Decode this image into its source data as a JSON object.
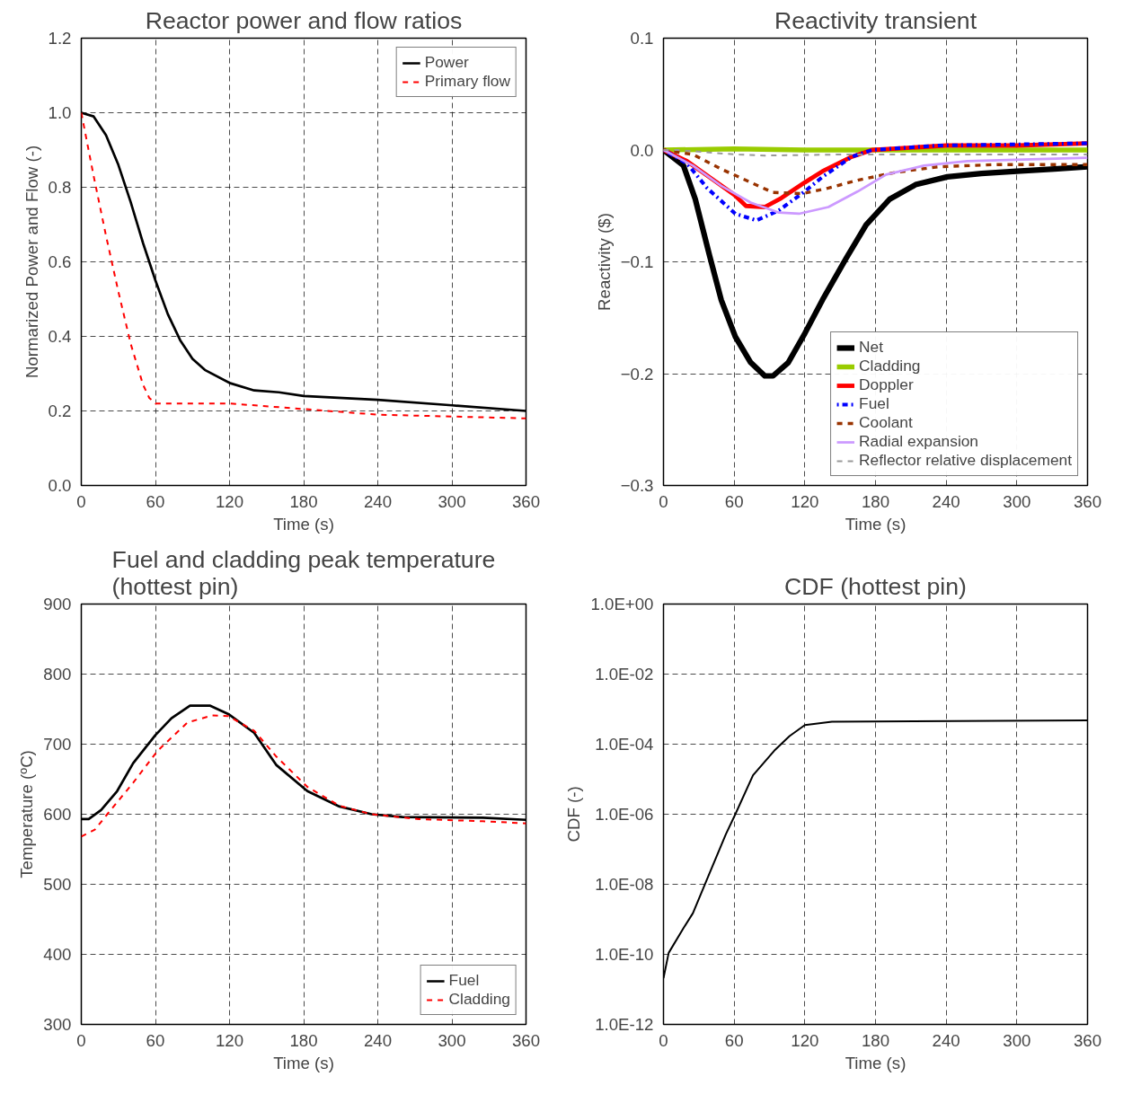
{
  "chart_data": [
    {
      "type": "line",
      "title": "Reactor power and flow ratios",
      "xlabel": "Time (s)",
      "ylabel": "Normarized Power and Flow (-)",
      "xlim": [
        0,
        360
      ],
      "xticks": [
        0,
        60,
        120,
        180,
        240,
        300,
        360
      ],
      "ylim": [
        0,
        1.2
      ],
      "yticks": [
        {
          "value": 0,
          "label": "0.0"
        },
        0.2,
        0.4,
        0.6,
        0.8,
        {
          "value": 1,
          "label": "1.0"
        },
        1.2
      ],
      "grid": true,
      "legend": "top right",
      "x": [
        0,
        10,
        20,
        30,
        40,
        50,
        60,
        70,
        80,
        90,
        100,
        120,
        140,
        160,
        180,
        240,
        300,
        360
      ],
      "series": [
        {
          "name": "Power",
          "color": "#000000",
          "line_style": "solid",
          "values": [
            1.0,
            0.99,
            0.94,
            0.86,
            0.76,
            0.65,
            0.55,
            0.46,
            0.39,
            0.34,
            0.31,
            0.275,
            0.255,
            0.25,
            0.24,
            0.23,
            0.215,
            0.2
          ]
        },
        {
          "name": "Primary flow",
          "color": "#ff0000",
          "line_style": "dashed",
          "x": [
            0,
            10,
            20,
            30,
            40,
            50,
            55,
            60,
            120,
            180,
            240,
            300,
            360
          ],
          "values": [
            1.0,
            0.83,
            0.67,
            0.52,
            0.38,
            0.27,
            0.235,
            0.22,
            0.22,
            0.205,
            0.19,
            0.185,
            0.18
          ]
        }
      ]
    },
    {
      "type": "line",
      "title": "Reactivity transient",
      "xlabel": "Time (s)",
      "ylabel": "Reactivity ($)",
      "xlim": [
        0,
        360
      ],
      "xticks": [
        0,
        60,
        120,
        180,
        240,
        300,
        360
      ],
      "ylim": [
        -0.3,
        0.1
      ],
      "yticks": [
        -0.3,
        -0.2,
        -0.1,
        {
          "value": 0,
          "label": "0.0"
        },
        0.1
      ],
      "grid": true,
      "legend": "bottom right",
      "series": [
        {
          "name": "Net",
          "color": "#000000",
          "line_style": "solid",
          "x": [
            0,
            17,
            27,
            39,
            49,
            61,
            74,
            86,
            93,
            106,
            120,
            135,
            155,
            172,
            192,
            214,
            241,
            270,
            300,
            332,
            360
          ],
          "values": [
            0,
            -0.014,
            -0.044,
            -0.094,
            -0.134,
            -0.167,
            -0.19,
            -0.202,
            -0.202,
            -0.19,
            -0.164,
            -0.134,
            -0.097,
            -0.067,
            -0.044,
            -0.031,
            -0.024,
            -0.021,
            -0.019,
            -0.017,
            -0.015
          ]
        },
        {
          "name": "Cladding",
          "color": "#99cc00",
          "line_style": "solid",
          "x": [
            0,
            60,
            120,
            360
          ],
          "values": [
            0,
            0.001,
            0,
            0
          ]
        },
        {
          "name": "Doppler",
          "color": "#ff0000",
          "line_style": "solid",
          "x": [
            0,
            20,
            40,
            60,
            70,
            86,
            100,
            120,
            135,
            160,
            177,
            240,
            300,
            360
          ],
          "values": [
            0,
            -0.01,
            -0.025,
            -0.04,
            -0.05,
            -0.051,
            -0.043,
            -0.029,
            -0.019,
            -0.006,
            0,
            0.004,
            0.004,
            0.006
          ]
        },
        {
          "name": "Fuel",
          "color": "#0000ff",
          "line_style": "dotted",
          "x": [
            0,
            20,
            37,
            61,
            79,
            98,
            120,
            135,
            160,
            177,
            233,
            300,
            360
          ],
          "values": [
            0,
            -0.012,
            -0.034,
            -0.057,
            -0.063,
            -0.054,
            -0.037,
            -0.024,
            -0.006,
            0,
            0.004,
            0.005,
            0.006
          ]
        },
        {
          "name": "Coolant",
          "color": "#993300",
          "line_style": "dashed",
          "x": [
            0,
            25,
            49,
            74,
            93,
            118,
            140,
            165,
            197,
            233,
            283,
            360
          ],
          "values": [
            0,
            -0.004,
            -0.017,
            -0.029,
            -0.038,
            -0.039,
            -0.034,
            -0.027,
            -0.02,
            -0.015,
            -0.013,
            -0.013
          ]
        },
        {
          "name": "Radial expansion",
          "color": "#cc99ff",
          "line_style": "solid",
          "x": [
            0,
            25,
            49,
            74,
            98,
            115,
            140,
            165,
            189,
            221,
            258,
            360
          ],
          "values": [
            0,
            -0.014,
            -0.032,
            -0.047,
            -0.056,
            -0.057,
            -0.051,
            -0.037,
            -0.022,
            -0.014,
            -0.01,
            -0.007
          ]
        },
        {
          "name": "Reflector relative displacement",
          "color": "#999999",
          "line_style": "dashed",
          "x": [
            0,
            12,
            61,
            86,
            150,
            360
          ],
          "values": [
            0,
            0,
            -0.004,
            -0.005,
            -0.004,
            -0.004
          ]
        }
      ]
    },
    {
      "type": "line",
      "title": "Fuel and cladding peak temperature\n(hottest pin)",
      "xlabel": "Time (s)",
      "ylabel": "Temperature (ºC)",
      "xlim": [
        0,
        360
      ],
      "xticks": [
        0,
        60,
        120,
        180,
        240,
        300,
        360
      ],
      "ylim": [
        300,
        900
      ],
      "yticks": [
        300,
        400,
        500,
        600,
        700,
        800,
        900
      ],
      "grid": true,
      "legend": "bottom right",
      "series": [
        {
          "name": "Fuel",
          "color": "#000000",
          "line_style": "solid",
          "x": [
            0,
            6,
            16,
            29,
            42,
            60,
            73,
            88,
            104,
            119,
            140,
            158,
            183,
            209,
            235,
            260,
            325,
            360
          ],
          "values": [
            593,
            593,
            606,
            633,
            673,
            713,
            737,
            755,
            755,
            743,
            716,
            670,
            633,
            611,
            600,
            596,
            595,
            592
          ]
        },
        {
          "name": "Cladding",
          "color": "#ff0000",
          "line_style": "dashed",
          "x": [
            0,
            11,
            21,
            42,
            62,
            86,
            106,
            119,
            140,
            158,
            183,
            209,
            235,
            273,
            325,
            360
          ],
          "values": [
            568,
            578,
            600,
            645,
            691,
            731,
            741,
            740,
            719,
            682,
            639,
            612,
            600,
            593,
            590,
            587
          ]
        }
      ]
    },
    {
      "type": "line",
      "title": "CDF (hottest pin)",
      "xlabel": "Time (s)",
      "ylabel": "CDF (-)",
      "log": "y",
      "xlim": [
        0,
        360
      ],
      "xticks": [
        0,
        60,
        120,
        180,
        240,
        300,
        360
      ],
      "ylim": [
        1e-12,
        1
      ],
      "yticks": [
        {
          "value": 1e-12,
          "label": "1.0E-12"
        },
        {
          "value": 1e-10,
          "label": "1.0E-10"
        },
        {
          "value": 1e-08,
          "label": "1.0E-08"
        },
        {
          "value": 1e-06,
          "label": "1.0E-06"
        },
        {
          "value": 0.0001,
          "label": "1.0E-04"
        },
        {
          "value": 0.01,
          "label": "1.0E-02"
        },
        {
          "value": 1,
          "label": "1.0E+00"
        }
      ],
      "grid": true,
      "series": [
        {
          "color": "#000000",
          "line_style": "solid",
          "x": [
            0,
            4.4,
            17,
            25,
            38,
            53,
            61,
            76,
            94,
            107,
            120,
            143,
            360
          ],
          "values": [
            2.1e-11,
            1.1e-10,
            5.6e-10,
            1.5e-09,
            1.7e-08,
            2.7e-07,
            1e-06,
            1.3e-05,
            6.5e-05,
            0.00017,
            0.00035,
            0.00044,
            0.00048
          ]
        }
      ]
    }
  ]
}
